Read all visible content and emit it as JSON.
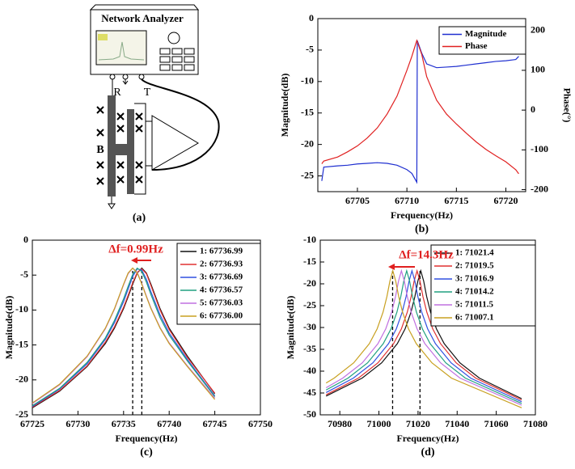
{
  "diagram": {
    "title": "Network Analyzer",
    "labels": [
      "R",
      "T",
      "B"
    ],
    "caption": "(a)"
  },
  "chart_data": [
    {
      "type": "line",
      "caption": "(b)",
      "xlabel": "Frequency(Hz)",
      "ylabel": "Magnitude(dB)",
      "y2label": "Phase(°)",
      "x": [
        67701.4,
        67701.6,
        67703,
        67704,
        67705,
        67706,
        67707,
        67708,
        67709,
        67710,
        67710.5,
        67711,
        67711.05,
        67711.5,
        67712,
        67713,
        67714,
        67715,
        67716,
        67717,
        67718,
        67719,
        67720,
        67721,
        67721.3
      ],
      "xlim": [
        67701,
        67722
      ],
      "xticks": [
        67705,
        67710,
        67715,
        67720
      ],
      "ylim": [
        -27.5,
        0
      ],
      "yticks": [
        0,
        -5,
        -10,
        -15,
        -20,
        -25
      ],
      "y2lim": [
        -205,
        230
      ],
      "y2ticks": [
        200,
        100,
        0,
        -100,
        -200
      ],
      "legend": "upper right",
      "series": [
        {
          "name": "Magnitude",
          "color": "#1f2fd0",
          "values": [
            -25.8,
            -23.6,
            -23.4,
            -23.3,
            -23.1,
            -23,
            -22.9,
            -23,
            -23.3,
            -24,
            -24.6,
            -26,
            -3.5,
            -5.5,
            -7.2,
            -7.8,
            -7.7,
            -7.6,
            -7.4,
            -7.2,
            -7,
            -6.8,
            -6.7,
            -6.5,
            -6
          ]
        },
        {
          "name": "Phase",
          "color": "#e02020",
          "axis": "y2",
          "values": [
            -135,
            -128,
            -118,
            -105,
            -90,
            -70,
            -45,
            -10,
            35,
            100,
            135,
            175,
            172,
            140,
            84,
            25,
            -10,
            -35,
            -58,
            -80,
            -99,
            -115,
            -130,
            -150,
            -160
          ]
        }
      ]
    },
    {
      "type": "line",
      "caption": "(c)",
      "xlabel": "Frequency(Hz)",
      "ylabel": "Magnitude(dB)",
      "annotation": "Δf=0.99Hz",
      "vlines": [
        67736,
        67737
      ],
      "x": [
        67725,
        67728,
        67731,
        67733,
        67734,
        67735,
        67735.5,
        67736,
        67736.5,
        67737,
        67737.5,
        67738,
        67739,
        67740,
        67742,
        67745
      ],
      "xlim": [
        67725,
        67750
      ],
      "xticks": [
        67725,
        67730,
        67735,
        67740,
        67745,
        67750
      ],
      "ylim": [
        -25,
        0
      ],
      "yticks": [
        0,
        -5,
        -10,
        -15,
        -20,
        -25
      ],
      "legend": "upper right",
      "series": [
        {
          "name": "1: 67736.99",
          "color": "#111111",
          "values": [
            -24,
            -21.6,
            -18.1,
            -14.8,
            -12.6,
            -9.8,
            -8.1,
            -6.3,
            -4.7,
            -4,
            -4.7,
            -6.3,
            -9.8,
            -12.6,
            -16.6,
            -22
          ]
        },
        {
          "name": "2: 67736.93",
          "color": "#e03030",
          "values": [
            -23.9,
            -21.5,
            -18,
            -14.6,
            -12.4,
            -9.6,
            -7.9,
            -6.1,
            -4.6,
            -4.1,
            -4.8,
            -6.5,
            -10,
            -12.8,
            -16.8,
            -21.9
          ]
        },
        {
          "name": "3: 67736.69",
          "color": "#3050e0",
          "values": [
            -23.8,
            -21.3,
            -17.7,
            -14.2,
            -11.8,
            -8.8,
            -7,
            -5.2,
            -4.1,
            -4.3,
            -5.6,
            -7.4,
            -10.7,
            -13.3,
            -17.1,
            -22.3
          ]
        },
        {
          "name": "4: 67736.57",
          "color": "#20a080",
          "values": [
            -23.7,
            -21.2,
            -17.5,
            -14,
            -11.5,
            -8.4,
            -6.6,
            -4.9,
            -4,
            -4.5,
            -6,
            -7.8,
            -11.1,
            -13.6,
            -17.3,
            -22.4
          ]
        },
        {
          "name": "5: 67736.03",
          "color": "#c070e0",
          "values": [
            -23.4,
            -20.7,
            -16.7,
            -12.7,
            -9.9,
            -6.4,
            -4.8,
            -4,
            -4.6,
            -6.2,
            -8,
            -9.7,
            -12.5,
            -14.7,
            -18,
            -22.6
          ]
        },
        {
          "name": "6: 67736.00",
          "color": "#c8a020",
          "values": [
            -23.3,
            -20.6,
            -16.6,
            -12.6,
            -9.8,
            -6.3,
            -4.7,
            -4,
            -4.7,
            -6.3,
            -8.1,
            -9.8,
            -12.6,
            -14.8,
            -18.1,
            -22.8
          ]
        }
      ]
    },
    {
      "type": "line",
      "caption": "(d)",
      "xlabel": "Frequency(Hz)",
      "ylabel": "Magnitude(dB)",
      "annotation": "Δf=14.3Hz",
      "vlines": [
        71007,
        71021
      ],
      "xlim": [
        70970,
        71080
      ],
      "xticks": [
        70980,
        71000,
        71020,
        71040,
        71060,
        71080
      ],
      "ylim": [
        -50,
        -10
      ],
      "yticks": [
        -10,
        -15,
        -20,
        -25,
        -30,
        -35,
        -40,
        -45,
        -50
      ],
      "legend": "upper right",
      "series": [
        {
          "name": "1: 71021.4",
          "color": "#111111",
          "x": [
            70973,
            70991.4,
            71001.4,
            71009.4,
            71013.4,
            71016.4,
            71018.4,
            71019.9,
            71021.4,
            71022.9,
            71024.4,
            71026.4,
            71029.4,
            71033.4,
            71041.4,
            71051.4,
            71073
          ],
          "values": [
            -45.7,
            -41.6,
            -38.1,
            -33.7,
            -30.3,
            -26.5,
            -22.9,
            -19.4,
            -17,
            -19.4,
            -22.9,
            -26.5,
            -30.3,
            -33.7,
            -38.1,
            -41.6,
            -46.3
          ]
        },
        {
          "name": "2: 71019.5",
          "color": "#e03030",
          "x": [
            70973,
            70989.5,
            70999.5,
            71007.5,
            71011.5,
            71014.5,
            71016.5,
            71018,
            71019.5,
            71021,
            71022.5,
            71024.5,
            71027.5,
            71031.5,
            71039.5,
            71049.5,
            71073
          ],
          "values": [
            -45.4,
            -41.6,
            -38.1,
            -33.7,
            -30.3,
            -26.5,
            -22.9,
            -19.4,
            -17,
            -19.4,
            -22.9,
            -26.5,
            -30.3,
            -33.7,
            -38.1,
            -41.6,
            -46.6
          ]
        },
        {
          "name": "3: 71016.9",
          "color": "#3050e0",
          "x": [
            70973,
            70986.9,
            70996.9,
            71004.9,
            71008.9,
            71011.9,
            71013.9,
            71015.4,
            71016.9,
            71018.4,
            71019.9,
            71021.9,
            71024.9,
            71028.9,
            71036.9,
            71046.9,
            71073
          ],
          "values": [
            -44.9,
            -41.6,
            -38.1,
            -33.7,
            -30.3,
            -26.5,
            -22.9,
            -19.4,
            -17,
            -19.4,
            -22.9,
            -26.5,
            -30.3,
            -33.7,
            -38.1,
            -41.6,
            -47
          ]
        },
        {
          "name": "4: 71014.2",
          "color": "#20a080",
          "x": [
            70973,
            70984.2,
            70994.2,
            71002.2,
            71006.2,
            71009.2,
            71011.2,
            71012.7,
            71014.2,
            71015.7,
            71017.2,
            71019.2,
            71022.2,
            71026.2,
            71034.2,
            71044.2,
            71073
          ],
          "values": [
            -44.3,
            -41.6,
            -38.1,
            -33.7,
            -30.3,
            -26.5,
            -22.9,
            -19.4,
            -17,
            -19.4,
            -22.9,
            -26.5,
            -30.3,
            -33.7,
            -38.1,
            -41.6,
            -47.4
          ]
        },
        {
          "name": "5: 71011.5",
          "color": "#c070e0",
          "x": [
            70973,
            70981.5,
            70991.5,
            70999.5,
            71003.5,
            71006.5,
            71008.5,
            71010,
            71011.5,
            71013,
            71014.5,
            71016.5,
            71019.5,
            71023.5,
            71031.5,
            71041.5,
            71073
          ],
          "values": [
            -43.8,
            -41.6,
            -38.1,
            -33.7,
            -30.3,
            -26.5,
            -22.9,
            -19.4,
            -17,
            -19.4,
            -22.9,
            -26.5,
            -30.3,
            -33.7,
            -38.1,
            -41.6,
            -47.8
          ]
        },
        {
          "name": "6: 71007.1",
          "color": "#c8a020",
          "x": [
            70973,
            70977.1,
            70987.1,
            70995.1,
            70999.1,
            71002.1,
            71004.1,
            71005.6,
            71007.1,
            71008.6,
            71010.1,
            71012.1,
            71015.1,
            71019.1,
            71027.1,
            71037.1,
            71073
          ],
          "values": [
            -42.7,
            -41.6,
            -38.1,
            -33.7,
            -30.3,
            -26.5,
            -22.9,
            -19.4,
            -17,
            -19.4,
            -22.9,
            -26.5,
            -30.3,
            -33.7,
            -38.1,
            -41.6,
            -48.4
          ]
        }
      ]
    }
  ]
}
